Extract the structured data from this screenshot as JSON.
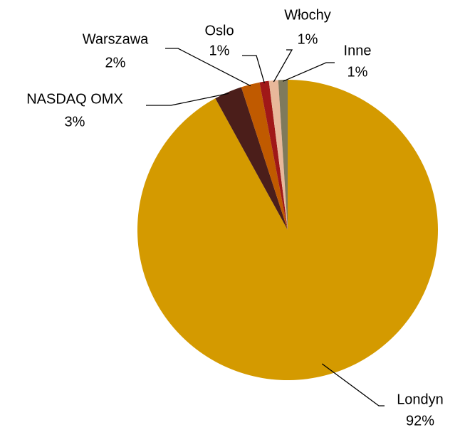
{
  "chart_data": {
    "type": "pie",
    "categories": [
      "Londyn",
      "NASDAQ OMX",
      "Warszawa",
      "Oslo",
      "Włochy",
      "Inne"
    ],
    "values": [
      92,
      3,
      2,
      1,
      1,
      1
    ],
    "value_labels": [
      "92%",
      "3%",
      "2%",
      "1%",
      "1%",
      "1%"
    ],
    "colors": [
      "#D49A00",
      "#4B1E1A",
      "#C05A00",
      "#A01818",
      "#E8B89A",
      "#7F7A5C"
    ]
  }
}
